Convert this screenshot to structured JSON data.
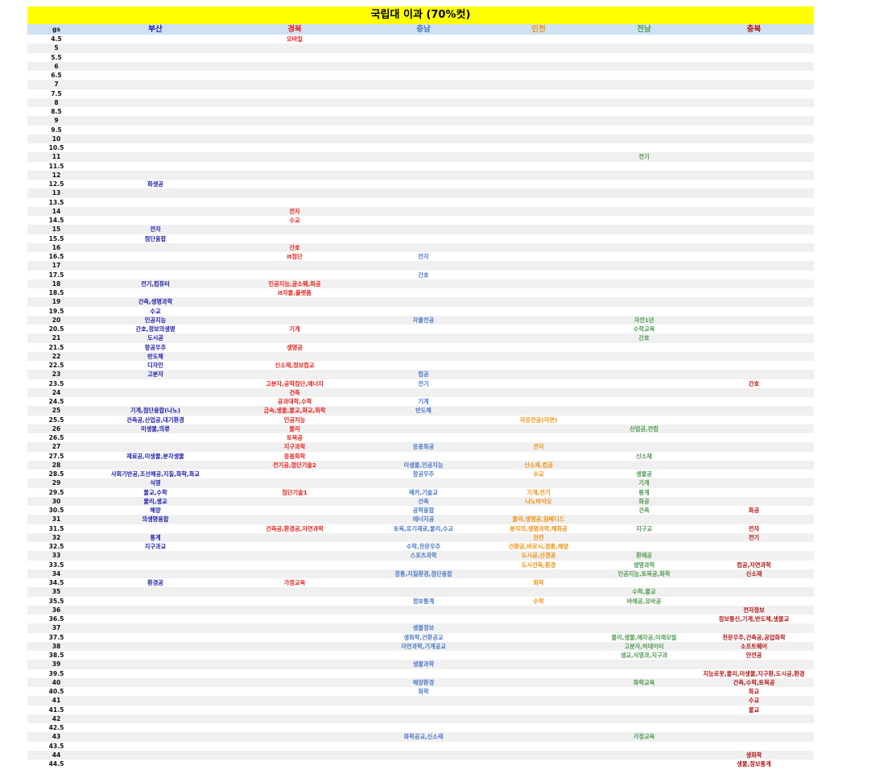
{
  "title": "국립대 이과 (70%컷)",
  "headers": [
    "gs",
    "부산",
    "경북",
    "충남",
    "인천",
    "전남",
    "충북"
  ],
  "colors": {
    "title_bg": "#ffff00",
    "header_bg": "#cfe2f3",
    "busan": "#1a1aa6",
    "gyeongbuk": "#e8201c",
    "chungnam": "#4a78c8",
    "incheon": "#f0900f",
    "jeonnam": "#4f9a4f",
    "chungbuk": "#b31212"
  },
  "rows": [
    [
      "4.5",
      "",
      "모바일",
      "",
      "",
      "",
      ""
    ],
    [
      "5",
      "",
      "",
      "",
      "",
      "",
      ""
    ],
    [
      "5.5",
      "",
      "",
      "",
      "",
      "",
      ""
    ],
    [
      "6",
      "",
      "",
      "",
      "",
      "",
      ""
    ],
    [
      "6.5",
      "",
      "",
      "",
      "",
      "",
      ""
    ],
    [
      "7",
      "",
      "",
      "",
      "",
      "",
      ""
    ],
    [
      "7.5",
      "",
      "",
      "",
      "",
      "",
      ""
    ],
    [
      "8",
      "",
      "",
      "",
      "",
      "",
      ""
    ],
    [
      "8.5",
      "",
      "",
      "",
      "",
      "",
      ""
    ],
    [
      "9",
      "",
      "",
      "",
      "",
      "",
      ""
    ],
    [
      "9.5",
      "",
      "",
      "",
      "",
      "",
      ""
    ],
    [
      "10",
      "",
      "",
      "",
      "",
      "",
      ""
    ],
    [
      "10.5",
      "",
      "",
      "",
      "",
      "",
      ""
    ],
    [
      "11",
      "",
      "",
      "",
      "",
      "전기",
      ""
    ],
    [
      "11.5",
      "",
      "",
      "",
      "",
      "",
      ""
    ],
    [
      "12",
      "",
      "",
      "",
      "",
      "",
      ""
    ],
    [
      "12.5",
      "화생공",
      "",
      "",
      "",
      "",
      ""
    ],
    [
      "13",
      "",
      "",
      "",
      "",
      "",
      ""
    ],
    [
      "13.5",
      "",
      "",
      "",
      "",
      "",
      ""
    ],
    [
      "14",
      "",
      "전자",
      "",
      "",
      "",
      ""
    ],
    [
      "14.5",
      "",
      "수교",
      "",
      "",
      "",
      ""
    ],
    [
      "15",
      "전자",
      "",
      "",
      "",
      "",
      ""
    ],
    [
      "15.5",
      "첨단융합",
      "",
      "",
      "",
      "",
      ""
    ],
    [
      "16",
      "",
      "간호",
      "",
      "",
      "",
      ""
    ],
    [
      "16.5",
      "",
      "it첨단",
      "전자",
      "",
      "",
      ""
    ],
    [
      "17",
      "",
      "",
      "",
      "",
      "",
      ""
    ],
    [
      "17.5",
      "",
      "",
      "간호",
      "",
      "",
      ""
    ],
    [
      "18",
      "전기,컴퓨터",
      "인공지능,글소웨,화공",
      "",
      "",
      "",
      ""
    ],
    [
      "18.5",
      "",
      "it자율,플랫폼",
      "",
      "",
      "",
      ""
    ],
    [
      "19",
      "건축,생명과학",
      "",
      "",
      "",
      "",
      ""
    ],
    [
      "19.5",
      "수교",
      "",
      "",
      "",
      "",
      ""
    ],
    [
      "20",
      "인공지능",
      "",
      "자율전공",
      "",
      "자전1년",
      ""
    ],
    [
      "20.5",
      "간호,정보의생명",
      "기계",
      "",
      "",
      "수학교육",
      ""
    ],
    [
      "21",
      "도시공",
      "",
      "",
      "",
      "간호",
      ""
    ],
    [
      "21.5",
      "항공우주",
      "생명공",
      "",
      "",
      "",
      ""
    ],
    [
      "22",
      "반도체",
      "",
      "",
      "",
      "",
      ""
    ],
    [
      "22.5",
      "디자인",
      "신소재,정보컴교",
      "",
      "",
      "",
      ""
    ],
    [
      "23",
      "고분자",
      "",
      "컴공",
      "",
      "",
      ""
    ],
    [
      "23.5",
      "",
      "고분자,공학첨단,에너지",
      "전기",
      "",
      "",
      "간호"
    ],
    [
      "24",
      "",
      "건축",
      "",
      "",
      "",
      ""
    ],
    [
      "24.5",
      "",
      "공과대학,수학",
      "기계",
      "",
      "",
      ""
    ],
    [
      "25",
      "기계,첨단융합(나노)",
      "금속,생물,물교,화교,화학",
      "반도체",
      "",
      "",
      ""
    ],
    [
      "25.5",
      "건축공,산업공,대기환경",
      "인공지능",
      "",
      "자유전공(자연)",
      "",
      ""
    ],
    [
      "26",
      "미생물,의류",
      "물리",
      "",
      "",
      "산업공,전컴",
      ""
    ],
    [
      "26.5",
      "",
      "토목공",
      "",
      "",
      "",
      ""
    ],
    [
      "27",
      "",
      "지구과학",
      "응용화공",
      "전자",
      "",
      ""
    ],
    [
      "27.5",
      "재료공,미생물,분자생물",
      "응용화학",
      "",
      "",
      "신소재",
      ""
    ],
    [
      "28",
      "",
      "전기공,첨단기술2",
      "미생물,인공지능",
      "신소재,컴공",
      "",
      ""
    ],
    [
      "28.5",
      "사회기반공,조선해공,지질,화학,화교",
      "",
      "항공우주",
      "수교",
      "생물공",
      ""
    ],
    [
      "29",
      "식영",
      "",
      "",
      "",
      "기계",
      ""
    ],
    [
      "29.5",
      "물교,수학",
      "첨단기술1",
      "메카,기술교",
      "기계,전기",
      "통계",
      ""
    ],
    [
      "30",
      "물리,생교",
      "",
      "건축",
      "나노바이오",
      "화공",
      ""
    ],
    [
      "30.5",
      "해양",
      "",
      "공학융합",
      "",
      "건축",
      "화공"
    ],
    [
      "31",
      "의생명융합",
      "",
      "에너지공",
      "물리,생명공,임베디드",
      "",
      ""
    ],
    [
      "31.5",
      "",
      "건축공,환경공,자연과학",
      "토목,유기재료,물리,수교",
      "분자의,생명과학,해화공",
      "지구교",
      "전자"
    ],
    [
      "32",
      "통계",
      "",
      "",
      "안전",
      "",
      "전기"
    ],
    [
      "32.5",
      "지구과교",
      "",
      "수학,천문우주",
      "건환공,바로시,정통,해양",
      "",
      ""
    ],
    [
      "33",
      "",
      "",
      "스포츠과학",
      "도시공,산경공",
      "환에공",
      ""
    ],
    [
      "33.5",
      "",
      "",
      "",
      "도시건축,환경",
      "생명과학",
      "컴공,자연과학"
    ],
    [
      "34",
      "",
      "",
      "정통,지질환경,첨단융합",
      "",
      "인공지능,토목공,화학",
      "신소재"
    ],
    [
      "34.5",
      "환경공",
      "가정교육",
      "",
      "화학",
      "",
      ""
    ],
    [
      "35",
      "",
      "",
      "",
      "",
      "수학,물교",
      ""
    ],
    [
      "35.5",
      "",
      "",
      "정보통계",
      "수학",
      "바에공,유바공",
      ""
    ],
    [
      "36",
      "",
      "",
      "",
      "",
      "",
      "전자정보"
    ],
    [
      "36.5",
      "",
      "",
      "",
      "",
      "",
      "정보통신,기계,반도체,생물교"
    ],
    [
      "37",
      "",
      "",
      "생물정보",
      "",
      "",
      ""
    ],
    [
      "37.5",
      "",
      "",
      "생화학,건환공교",
      "",
      "물리,생물,에자공,미래모빌",
      "천문우주,건축공,공업화학"
    ],
    [
      "38",
      "",
      "",
      "자연과학,기계공교",
      "",
      "고분자,빅데이터",
      "소프트웨어"
    ],
    [
      "38.5",
      "",
      "",
      "",
      "",
      "생교,식영과,지구과",
      "안전공"
    ],
    [
      "39",
      "",
      "",
      "생물과학",
      "",
      "",
      ""
    ],
    [
      "39.5",
      "",
      "",
      "",
      "",
      "",
      "지능로봇,물리,미생물,지구환,도시공,환경"
    ],
    [
      "40",
      "",
      "",
      "해양환경",
      "",
      "화학교육",
      "건축,수학,토목공"
    ],
    [
      "40.5",
      "",
      "",
      "화학",
      "",
      "",
      "화교"
    ],
    [
      "41",
      "",
      "",
      "",
      "",
      "",
      "수교"
    ],
    [
      "41.5",
      "",
      "",
      "",
      "",
      "",
      "물교"
    ],
    [
      "42",
      "",
      "",
      "",
      "",
      "",
      ""
    ],
    [
      "42.5",
      "",
      "",
      "",
      "",
      "",
      ""
    ],
    [
      "43",
      "",
      "",
      "화학공교,신소재",
      "",
      "가정교육",
      ""
    ],
    [
      "43.5",
      "",
      "",
      "",
      "",
      "",
      ""
    ],
    [
      "44",
      "",
      "",
      "",
      "",
      "",
      "생화학"
    ],
    [
      "44.5",
      "",
      "",
      "",
      "",
      "",
      "생물,정보통계"
    ]
  ]
}
